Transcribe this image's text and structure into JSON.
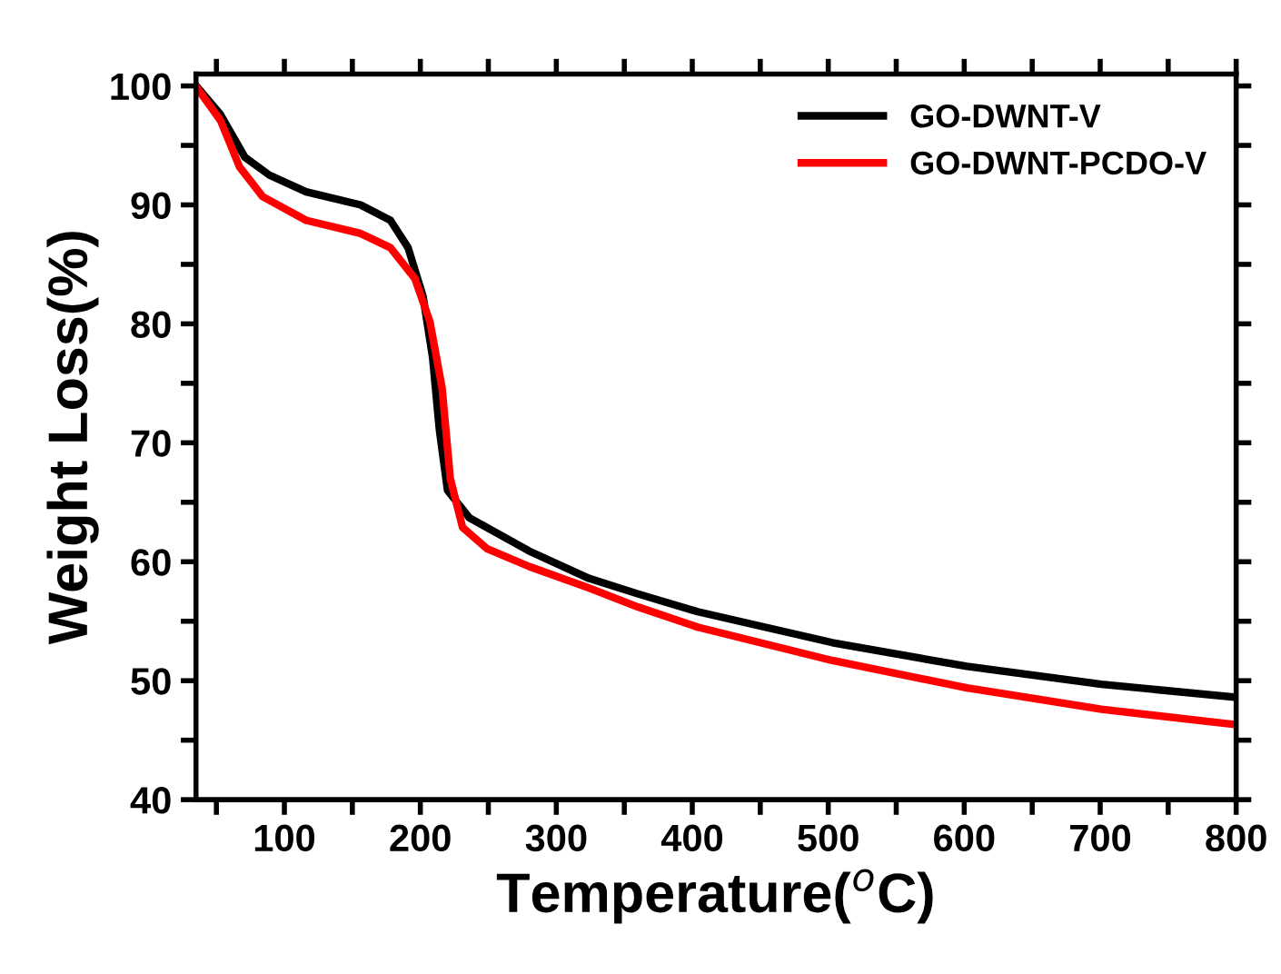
{
  "chart_data": {
    "type": "line",
    "xlabel": "Temperature($^{o}$C)",
    "ylabel": "Weight Loss(%)",
    "xlim": [
      35,
      800
    ],
    "ylim": [
      40,
      101
    ],
    "xticks": [
      {
        "value": 50,
        "label": null
      },
      100,
      {
        "value": 150,
        "label": null
      },
      200,
      {
        "value": 250,
        "label": null
      },
      300,
      {
        "value": 350,
        "label": null
      },
      400,
      {
        "value": 450,
        "label": null
      },
      500,
      {
        "value": 550,
        "label": null
      },
      600,
      {
        "value": 650,
        "label": null
      },
      700,
      {
        "value": 750,
        "label": null
      },
      800
    ],
    "yticks": [
      40,
      {
        "value": 45,
        "label": null
      },
      50,
      {
        "value": 55,
        "label": null
      },
      60,
      {
        "value": 65,
        "label": null
      },
      70,
      {
        "value": 75,
        "label": null
      },
      80,
      {
        "value": 85,
        "label": null
      },
      90,
      {
        "value": 95,
        "label": null
      },
      100
    ],
    "grid": false,
    "legend": "top right",
    "line_style": "solid",
    "marker": "none",
    "series": [
      {
        "name": "GO-DWNT-V",
        "color": "#000000",
        "x": [
          36,
          53,
          71,
          89,
          116,
          156,
          178,
          191,
          202,
          209,
          214,
          220,
          236,
          280,
          324,
          360,
          404,
          503,
          602,
          701,
          800
        ],
        "values": [
          99.9,
          97.6,
          94.0,
          92.5,
          91.1,
          90.0,
          88.7,
          86.4,
          82.3,
          77.2,
          71.1,
          66.0,
          63.7,
          60.9,
          58.6,
          57.3,
          55.8,
          53.2,
          51.2,
          49.7,
          48.6
        ]
      },
      {
        "name": "GO-DWNT-PCDO-V",
        "color": "#ff0000",
        "x": [
          36,
          53,
          67,
          84,
          116,
          156,
          178,
          196,
          207,
          216,
          222,
          231,
          249,
          280,
          324,
          360,
          404,
          503,
          602,
          701,
          800
        ],
        "values": [
          99.8,
          97.1,
          93.2,
          90.7,
          88.7,
          87.6,
          86.4,
          83.8,
          80.2,
          74.6,
          67.0,
          62.9,
          61.1,
          59.6,
          57.8,
          56.2,
          54.5,
          51.7,
          49.4,
          47.6,
          46.3
        ]
      }
    ]
  }
}
